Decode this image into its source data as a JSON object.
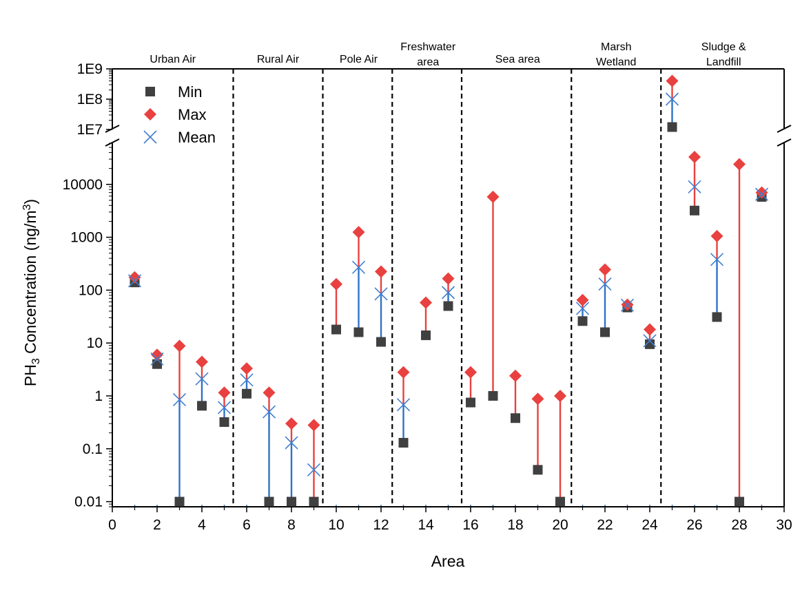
{
  "chart_data": {
    "type": "scatter",
    "title": "",
    "xlabel": "Area",
    "ylabel": "PH3 Concentration (ng/m3)",
    "ylabel_parts": {
      "base": "PH",
      "sub": "3",
      "mid": " Concentration (ng/m",
      "sup": "3",
      "end": ")"
    },
    "xlim": [
      0,
      30
    ],
    "y_scale": "log-broken",
    "y_lower_range": [
      0.008,
      60000
    ],
    "y_upper_range": [
      10000000,
      1000000000
    ],
    "grid": false,
    "legend_position": "top-left",
    "x_ticks": [
      "0",
      "2",
      "4",
      "6",
      "8",
      "10",
      "12",
      "14",
      "16",
      "18",
      "20",
      "22",
      "24",
      "26",
      "28",
      "30"
    ],
    "y_ticks_lower": [
      "0.01",
      "0.1",
      "1",
      "10",
      "100",
      "1000",
      "10000"
    ],
    "y_ticks_upper": [
      "1E7",
      "1E8",
      "1E9"
    ],
    "region_dividers": [
      5.4,
      9.4,
      12.5,
      15.6,
      20.5,
      24.5
    ],
    "regions": [
      {
        "lines": [
          "Urban Air"
        ],
        "center": 2.7
      },
      {
        "lines": [
          "Rural Air"
        ],
        "center": 7.4
      },
      {
        "lines": [
          "Pole Air"
        ],
        "center": 11.0
      },
      {
        "lines": [
          "Freshwater",
          "area"
        ],
        "center": 14.1
      },
      {
        "lines": [
          "Sea area"
        ],
        "center": 18.1
      },
      {
        "lines": [
          "Marsh",
          "Wetland"
        ],
        "center": 22.5
      },
      {
        "lines": [
          "Sludge &",
          "Landfill"
        ],
        "center": 27.3
      }
    ],
    "legend": [
      "Min",
      "Max",
      "Mean"
    ],
    "colors": {
      "min": "#404040",
      "max": "#e8413f",
      "mean": "#3f7fd0",
      "max_line": "#e8413f",
      "mean_line": "#2f72c8"
    },
    "x": [
      1,
      2,
      3,
      4,
      5,
      6,
      7,
      8,
      9,
      10,
      11,
      12,
      13,
      14,
      15,
      16,
      17,
      18,
      19,
      20,
      21,
      22,
      23,
      24,
      25,
      26,
      27,
      28,
      29
    ],
    "series": [
      {
        "name": "Min",
        "values": [
          140,
          4,
          0.01,
          0.65,
          0.32,
          1.1,
          0.01,
          0.01,
          0.01,
          18,
          16,
          10.5,
          0.13,
          14,
          50,
          0.75,
          1.0,
          0.38,
          0.04,
          0.01,
          26,
          16,
          47,
          9.5,
          12000000,
          3200,
          31,
          0.01,
          5800
        ]
      },
      {
        "name": "Max",
        "values": [
          175,
          6,
          8.8,
          4.4,
          1.15,
          3.3,
          1.15,
          0.3,
          0.28,
          130,
          1250,
          225,
          2.8,
          58,
          165,
          2.8,
          5800,
          2.4,
          0.88,
          1.0,
          65,
          245,
          53,
          18,
          400000000,
          33000,
          1050,
          24000,
          7000
        ]
      },
      {
        "name": "Mean",
        "values": [
          150,
          5,
          0.85,
          2.1,
          0.6,
          2.0,
          0.5,
          0.13,
          0.04,
          null,
          270,
          85,
          0.68,
          null,
          90,
          null,
          null,
          null,
          null,
          null,
          45,
          130,
          52,
          11,
          100000000,
          9000,
          380,
          null,
          6500
        ]
      }
    ],
    "whisker_type": [
      "mean",
      "mean",
      "mean",
      "mean",
      "mean",
      "mean",
      "mean",
      "mean",
      "max",
      "max",
      "mean",
      "mean",
      "mean",
      "max",
      "mean",
      "max",
      "max",
      "max",
      "max",
      "max",
      "mean",
      "mean",
      "mean",
      "mean",
      "mean",
      "max",
      "mean",
      "max",
      "mean"
    ]
  }
}
